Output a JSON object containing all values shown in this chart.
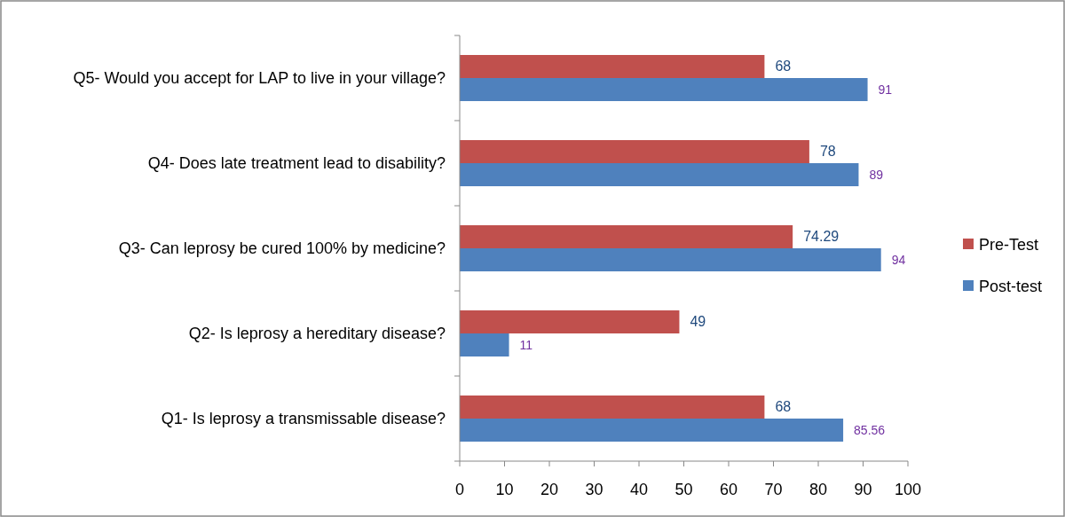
{
  "chart_data": {
    "type": "bar",
    "orientation": "horizontal",
    "categories": [
      "Q5- Would you accept for LAP to live in your village?",
      "Q4- Does late treatment lead to disability?",
      "Q3- Can leprosy be cured 100% by medicine?",
      "Q2- Is leprosy a hereditary disease?",
      "Q1- Is leprosy a transmissable disease?"
    ],
    "series": [
      {
        "name": "Pre-Test",
        "color": "#c0504d",
        "values": [
          68,
          78,
          74.29,
          49,
          68
        ]
      },
      {
        "name": "Post-test",
        "color": "#4f81bd",
        "values": [
          91,
          89,
          94,
          11,
          85.56
        ]
      }
    ],
    "xlim": [
      0,
      100
    ],
    "xticks": [
      0,
      10,
      20,
      30,
      40,
      50,
      60,
      70,
      80,
      90,
      100
    ],
    "data_labels": true,
    "legend": "right",
    "grid": false
  }
}
